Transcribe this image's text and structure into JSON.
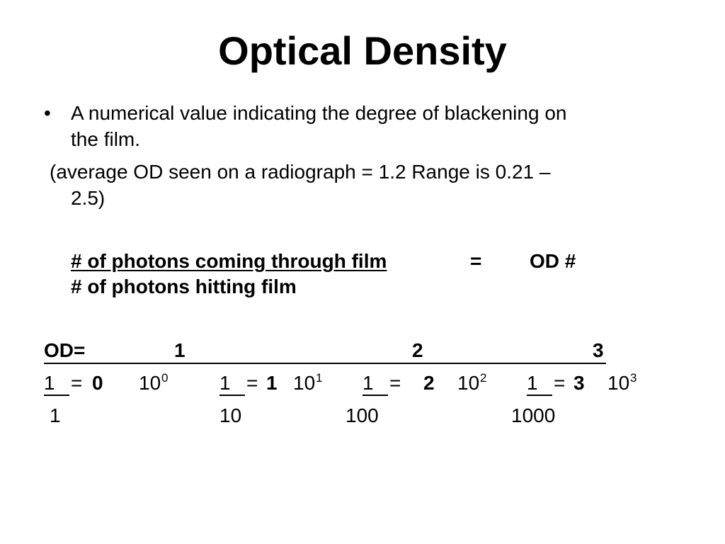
{
  "slide": {
    "title": "Optical Density",
    "bullet_char": "•",
    "definition_line1": "A numerical value indicating the degree of blackening on",
    "definition_line2": "the film.",
    "average_line1": "(average OD seen on a radiograph = 1.2  Range is 0.21 –",
    "average_line2": "2.5)"
  },
  "formula": {
    "numerator": "# of photons coming through film ",
    "equals": "=",
    "result": "OD #",
    "denominator": "# of photons hitting film"
  },
  "od_table": {
    "header_label": "OD=",
    "header_values": [
      "1",
      "2",
      "3"
    ],
    "examples": [
      {
        "numerator": "1",
        "equals": "=",
        "od": "0",
        "base": "10",
        "exponent": "0",
        "denominator": "1"
      },
      {
        "numerator": "1",
        "equals": "=",
        "od": "1",
        "base": "10",
        "exponent": "1",
        "denominator": "10"
      },
      {
        "numerator": "1",
        "equals": "=",
        "od": "2",
        "base": "10",
        "exponent": "2",
        "denominator": "100"
      },
      {
        "numerator": "1",
        "equals": "=",
        "od": "3",
        "base": "10",
        "exponent": "3",
        "denominator": "1000"
      }
    ]
  }
}
